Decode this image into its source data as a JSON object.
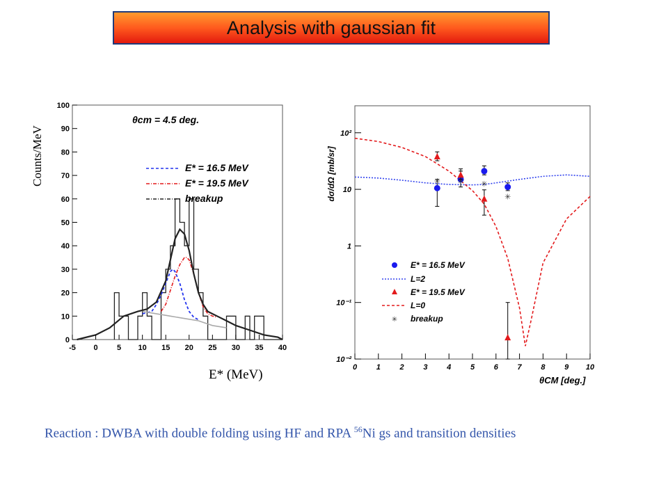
{
  "title": "Analysis with gaussian fit",
  "caption": {
    "text_before": "Reaction : DWBA with double folding using HF and RPA ",
    "superscript": "56",
    "text_after": "Ni gs and transition densities"
  },
  "colors": {
    "banner_border": "#1f3a7a",
    "caption": "#3355aa",
    "red": "#e31a1c",
    "blue": "#1a1aee"
  },
  "chart_data": [
    {
      "type": "line",
      "subtype": "histogram-with-fits",
      "annotation": "θcm = 4.5 deg.",
      "xlabel": "E* (MeV)",
      "ylabel": "Counts/MeV",
      "xlim": [
        -5,
        40
      ],
      "ylim": [
        0,
        100
      ],
      "x_ticks": [
        "-5",
        "0",
        "5",
        "10",
        "15",
        "20",
        "25",
        "30",
        "35",
        "40"
      ],
      "y_ticks": [
        "0",
        "10",
        "20",
        "30",
        "40",
        "50",
        "60",
        "70",
        "80",
        "90",
        "100"
      ],
      "legend_position": "top-right",
      "legend": [
        "E* = 16.5 MeV",
        "E* = 19.5 MeV",
        "breakup"
      ],
      "histogram": {
        "bin_width": 1,
        "bin_starts": [
          4,
          5,
          6,
          7,
          8,
          9,
          10,
          11,
          12,
          13,
          14,
          15,
          16,
          17,
          18,
          19,
          20,
          21,
          22,
          23,
          24,
          25,
          26,
          27,
          28,
          29,
          30,
          31,
          32,
          33,
          34,
          35,
          36,
          37,
          38,
          39
        ],
        "counts": [
          20,
          10,
          10,
          0,
          0,
          10,
          20,
          10,
          0,
          0,
          20,
          30,
          40,
          60,
          50,
          40,
          60,
          30,
          20,
          10,
          0,
          0,
          0,
          0,
          10,
          10,
          0,
          0,
          10,
          0,
          10,
          10,
          0,
          0,
          0,
          0
        ]
      },
      "series": [
        {
          "name": "E* = 16.5 MeV",
          "style": "blue-dashed",
          "x": [
            10,
            12,
            13,
            14,
            15,
            16,
            16.5,
            17,
            18,
            19,
            20,
            21,
            22
          ],
          "y": [
            11,
            12,
            15,
            19,
            24,
            29,
            30,
            29,
            24,
            17,
            12,
            9.5,
            8.5
          ]
        },
        {
          "name": "E* = 19.5 MeV",
          "style": "red-dashdot",
          "x": [
            14,
            15,
            16,
            17,
            18,
            19,
            19.5,
            20,
            21,
            22,
            23,
            24,
            25,
            26
          ],
          "y": [
            12,
            15,
            21,
            27,
            32,
            35,
            35,
            34,
            28,
            20,
            14,
            11,
            10,
            9.5
          ]
        },
        {
          "name": "breakup",
          "style": "black-dashdot",
          "x": [
            -4,
            0,
            3,
            6,
            9,
            11,
            13,
            15,
            16,
            17,
            18,
            19,
            20,
            21,
            22,
            23,
            24,
            26,
            28,
            30,
            33,
            36,
            39,
            40
          ],
          "y": [
            0,
            2,
            5,
            10,
            12,
            13,
            16,
            25,
            34,
            43,
            47,
            45,
            38,
            28,
            20,
            15,
            12,
            10,
            8,
            6,
            4,
            2,
            1,
            0
          ]
        },
        {
          "name": "",
          "style": "gray-solid",
          "x": [
            10,
            13,
            16,
            19,
            22,
            25,
            28
          ],
          "y": [
            12,
            11,
            10,
            9,
            8,
            6,
            5
          ]
        }
      ]
    },
    {
      "type": "scatter",
      "subtype": "angular-distribution",
      "xlabel": "θCM [deg.]",
      "ylabel": "dσ/dΩ [mb/sr]",
      "xlim": [
        0,
        10
      ],
      "ylim": [
        0.01,
        300
      ],
      "y_scale": "log",
      "x_ticks": [
        "0",
        "1",
        "2",
        "3",
        "4",
        "5",
        "6",
        "7",
        "8",
        "9",
        "10"
      ],
      "y_ticks": [
        "10⁻²",
        "10⁻¹",
        "1",
        "10",
        "10²"
      ],
      "legend_position": "bottom-center",
      "legend": [
        "E* = 16.5 MeV",
        "L=2",
        "E* = 19.5 MeV",
        "L=0",
        "breakup"
      ],
      "points": [
        {
          "name": "E* = 16.5 MeV",
          "marker": "circle",
          "color": "#1a1aee",
          "x": [
            3.5,
            4.5,
            5.5,
            6.5
          ],
          "y": [
            10.5,
            15,
            21,
            11
          ],
          "err_low": [
            5,
            11,
            18,
            9.5
          ],
          "err_high": [
            15,
            21,
            26,
            13
          ]
        },
        {
          "name": "E* = 19.5 MeV",
          "marker": "triangle",
          "color": "#e31a1c",
          "x": [
            3.5,
            4.5,
            5.5,
            6.5
          ],
          "y": [
            38,
            18,
            6.8,
            0.024
          ],
          "err_low": [
            32,
            15,
            3.5,
            0.01
          ],
          "err_high": [
            46,
            23,
            9.8,
            0.1
          ]
        },
        {
          "name": "breakup",
          "marker": "star",
          "color": "#333333",
          "x": [
            3.5,
            4.5,
            5.5,
            6.5
          ],
          "y": [
            14,
            14,
            12.5,
            7.5
          ]
        }
      ],
      "curves": [
        {
          "name": "L=2",
          "style": "blue-dotted",
          "x": [
            0,
            1,
            2,
            3,
            4,
            5,
            5.5,
            6,
            7,
            8,
            9,
            10
          ],
          "y": [
            16.5,
            15.8,
            14.5,
            13,
            12.2,
            12,
            12.2,
            13,
            15,
            17,
            18,
            17
          ]
        },
        {
          "name": "L=0",
          "style": "red-dashed",
          "x": [
            0,
            1,
            2,
            3,
            4,
            5,
            5.5,
            6,
            6.5,
            7,
            7.25,
            7.5,
            8,
            9,
            10
          ],
          "y": [
            80,
            70,
            55,
            38,
            21,
            9.5,
            5.5,
            2.2,
            0.6,
            0.08,
            0.017,
            0.05,
            0.5,
            3,
            7.5
          ]
        }
      ]
    }
  ]
}
